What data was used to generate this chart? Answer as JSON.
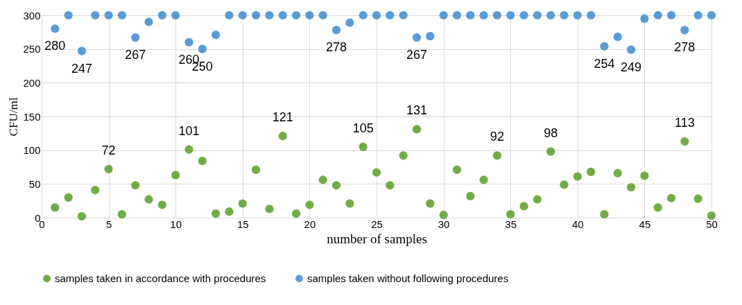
{
  "chart_data": {
    "type": "scatter",
    "xlabel": "number of samples",
    "ylabel": "CFU/ml",
    "x": [
      1,
      2,
      3,
      4,
      5,
      6,
      7,
      8,
      9,
      10,
      11,
      12,
      13,
      14,
      15,
      16,
      17,
      18,
      19,
      20,
      21,
      22,
      23,
      24,
      25,
      26,
      27,
      28,
      29,
      30,
      31,
      32,
      33,
      34,
      35,
      36,
      37,
      38,
      39,
      40,
      41,
      42,
      43,
      44,
      45,
      46,
      47,
      48,
      49,
      50
    ],
    "series": [
      {
        "name": "samples taken in accordance with procedures",
        "color": "#70ad47",
        "values": [
          15,
          30,
          2,
          41,
          72,
          5,
          48,
          27,
          19,
          63,
          101,
          84,
          6,
          9,
          21,
          71,
          13,
          121,
          6,
          19,
          56,
          48,
          21,
          105,
          67,
          48,
          92,
          131,
          21,
          4,
          71,
          32,
          56,
          92,
          5,
          17,
          27,
          98,
          49,
          61,
          68,
          5,
          66,
          45,
          62,
          15,
          29,
          113,
          28,
          3
        ],
        "value_labels": [
          null,
          null,
          null,
          null,
          "72",
          null,
          null,
          null,
          null,
          null,
          "101",
          null,
          null,
          null,
          null,
          null,
          null,
          "121",
          null,
          null,
          null,
          null,
          null,
          "105",
          null,
          null,
          null,
          "131",
          null,
          null,
          null,
          null,
          null,
          "92",
          null,
          null,
          null,
          "98",
          null,
          null,
          null,
          null,
          null,
          null,
          null,
          null,
          null,
          "113",
          null,
          null
        ]
      },
      {
        "name": "samples taken without following procedures",
        "color": "#5b9bd5",
        "values": [
          280,
          300,
          247,
          300,
          300,
          300,
          267,
          290,
          300,
          300,
          260,
          250,
          271,
          300,
          300,
          300,
          300,
          300,
          300,
          300,
          300,
          278,
          289,
          300,
          300,
          300,
          300,
          267,
          269,
          300,
          300,
          300,
          300,
          300,
          300,
          300,
          300,
          300,
          300,
          300,
          300,
          254,
          268,
          249,
          295,
          300,
          300,
          278,
          300,
          300
        ],
        "value_labels": [
          "280",
          null,
          "247",
          null,
          null,
          null,
          "267",
          null,
          null,
          null,
          "260",
          "250",
          null,
          null,
          null,
          null,
          null,
          null,
          null,
          null,
          null,
          "278",
          null,
          null,
          null,
          null,
          null,
          "267",
          null,
          null,
          null,
          null,
          null,
          null,
          null,
          null,
          null,
          null,
          null,
          null,
          null,
          "254",
          null,
          "249",
          null,
          null,
          null,
          "278",
          null,
          null
        ]
      }
    ],
    "xlim": [
      0,
      50
    ],
    "xticks": [
      0,
      5,
      10,
      15,
      20,
      25,
      30,
      35,
      40,
      45,
      50
    ],
    "ylim": [
      0,
      300
    ],
    "yticks": [
      0,
      50,
      100,
      150,
      200,
      250,
      300
    ],
    "grid": true,
    "legend": "bottom",
    "marker": "circle"
  }
}
